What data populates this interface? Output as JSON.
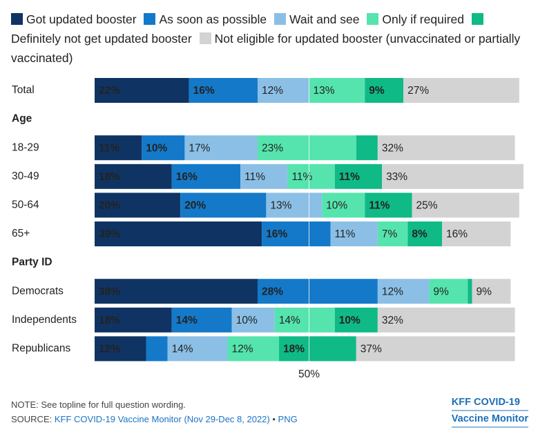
{
  "chart_data": {
    "type": "stacked-bar-horizontal",
    "categories": [
      "Total",
      "Age",
      "18-29",
      "30-49",
      "50-64",
      "65+",
      "Party ID",
      "Democrats",
      "Independents",
      "Republicans"
    ],
    "series": [
      {
        "name": "Got updated booster",
        "color": "#0f3463",
        "values": [
          22,
          null,
          11,
          18,
          20,
          39,
          null,
          38,
          18,
          12
        ],
        "value_labels": [
          "22%",
          null,
          "11%",
          "18%",
          "20%",
          "39%",
          null,
          "38%",
          "18%",
          "12%"
        ]
      },
      {
        "name": "As soon as possible",
        "color": "#1479c9",
        "values": [
          16,
          null,
          10,
          16,
          20,
          16,
          null,
          28,
          14,
          5
        ],
        "value_labels": [
          "16%",
          null,
          "10%",
          "16%",
          "20%",
          "16%",
          null,
          "28%",
          "14%",
          null
        ]
      },
      {
        "name": "Wait and see",
        "color": "#8bbfe6",
        "values": [
          12,
          null,
          17,
          11,
          13,
          11,
          null,
          12,
          10,
          14
        ],
        "value_labels": [
          "12%",
          null,
          "17%",
          "11%",
          "13%",
          "11%",
          null,
          "12%",
          "10%",
          "14%"
        ]
      },
      {
        "name": "Only if required",
        "color": "#55e4ae",
        "values": [
          13,
          null,
          23,
          11,
          10,
          7,
          null,
          9,
          14,
          12
        ],
        "value_labels": [
          "13%",
          null,
          "23%",
          "11%",
          "10%",
          "7%",
          null,
          "9%",
          "14%",
          "12%"
        ]
      },
      {
        "name": "Definitely not get updated booster",
        "color": "#0fba86",
        "values": [
          9,
          null,
          5,
          11,
          11,
          8,
          null,
          1,
          10,
          18
        ],
        "value_labels": [
          "9%",
          null,
          null,
          "11%",
          "11%",
          "8%",
          null,
          null,
          "10%",
          "18%"
        ]
      },
      {
        "name": "Not eligible for updated booster (unvaccinated or partially vaccinated)",
        "color": "#d3d3d3",
        "values": [
          27,
          null,
          32,
          33,
          25,
          16,
          null,
          9,
          32,
          37
        ],
        "value_labels": [
          "27%",
          null,
          "32%",
          "33%",
          "25%",
          "16%",
          null,
          "9%",
          "32%",
          "37%"
        ]
      }
    ],
    "xlim": [
      0,
      100
    ],
    "xticks": [
      {
        "value": 50,
        "label": "50%"
      }
    ],
    "note": "NOTE: See topline for full question wording.",
    "source_prefix": "SOURCE:",
    "source_link": "KFF COVID-19 Vaccine Monitor (Nov 29-Dec 8, 2022)",
    "source_sep": "•",
    "source_format": "PNG",
    "logo_line1": "KFF COVID-19",
    "logo_line2": "Vaccine Monitor"
  }
}
